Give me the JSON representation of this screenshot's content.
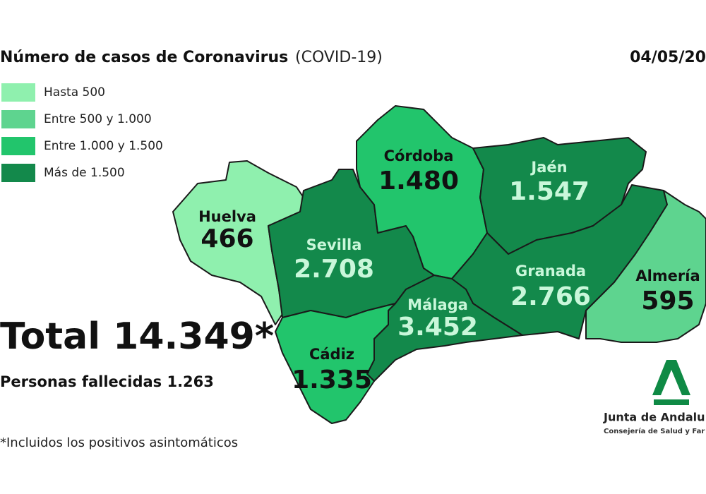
{
  "header": {
    "title": "Número de casos de Coronavirus",
    "subtitle": "(COVID-19)",
    "date": "04/05/20"
  },
  "legend": [
    {
      "label": "Hasta 500",
      "color": "#8ff0ae"
    },
    {
      "label": "Entre 500 y 1.000",
      "color": "#5ed48f"
    },
    {
      "label": "Entre 1.000 y 1.500",
      "color": "#22c56c"
    },
    {
      "label": "Más de 1.500",
      "color": "#13894b"
    }
  ],
  "provinces": [
    {
      "name": "Huelva",
      "value": "466",
      "color": "#8ff0ae"
    },
    {
      "name": "Sevilla",
      "value": "2.708",
      "color": "#13894b"
    },
    {
      "name": "Córdoba",
      "value": "1.480",
      "color": "#22c56c"
    },
    {
      "name": "Jaén",
      "value": "1.547",
      "color": "#13894b"
    },
    {
      "name": "Granada",
      "value": "2.766",
      "color": "#13894b"
    },
    {
      "name": "Almería",
      "value": "595",
      "color": "#5ed48f"
    },
    {
      "name": "Málaga",
      "value": "3.452",
      "color": "#13894b"
    },
    {
      "name": "Cádiz",
      "value": "1.335",
      "color": "#22c56c"
    }
  ],
  "total": "Total 14.349*",
  "deaths": "Personas fallecidas 1.263",
  "footnote": "*Incluidos los positivos asintomáticos",
  "logo": {
    "name": "Junta de Andalu",
    "department": "Consejería de Salud y Far"
  }
}
